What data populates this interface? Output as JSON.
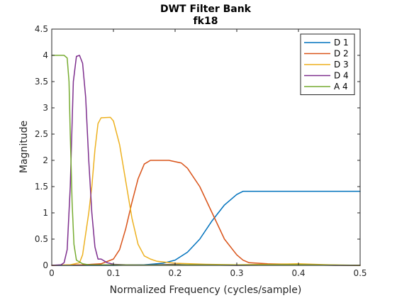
{
  "chart_data": {
    "type": "line",
    "title": "DWT Filter Bank",
    "subtitle": "fk18",
    "xlabel": "Normalized Frequency  (cycles/sample)",
    "ylabel": "Magnitude",
    "xlim": [
      0,
      0.5
    ],
    "ylim": [
      0,
      4.5
    ],
    "x_ticks": [
      0,
      0.1,
      0.2,
      0.3,
      0.4,
      0.5
    ],
    "x_tick_labels": [
      "0",
      "0.1",
      "0.2",
      "0.3",
      "0.4",
      "0.5"
    ],
    "y_ticks": [
      0,
      0.5,
      1,
      1.5,
      2,
      2.5,
      3,
      3.5,
      4,
      4.5
    ],
    "y_tick_labels": [
      "0",
      "0.5",
      "1",
      "1.5",
      "2",
      "2.5",
      "3",
      "3.5",
      "4",
      "4.5"
    ],
    "grid": false,
    "legend_position": "top-right",
    "series": [
      {
        "name": "D 1",
        "color": "#0072BD",
        "points": [
          [
            0,
            0
          ],
          [
            0.1,
            0
          ],
          [
            0.15,
            0.01
          ],
          [
            0.18,
            0.04
          ],
          [
            0.2,
            0.1
          ],
          [
            0.22,
            0.25
          ],
          [
            0.24,
            0.5
          ],
          [
            0.26,
            0.85
          ],
          [
            0.28,
            1.15
          ],
          [
            0.3,
            1.35
          ],
          [
            0.31,
            1.41
          ],
          [
            0.5,
            1.41
          ]
        ]
      },
      {
        "name": "D 2",
        "color": "#D95319",
        "points": [
          [
            0,
            0
          ],
          [
            0.05,
            0.01
          ],
          [
            0.08,
            0.03
          ],
          [
            0.1,
            0.12
          ],
          [
            0.11,
            0.3
          ],
          [
            0.12,
            0.7
          ],
          [
            0.13,
            1.2
          ],
          [
            0.14,
            1.65
          ],
          [
            0.15,
            1.93
          ],
          [
            0.16,
            2.0
          ],
          [
            0.19,
            2.0
          ],
          [
            0.21,
            1.95
          ],
          [
            0.22,
            1.85
          ],
          [
            0.24,
            1.5
          ],
          [
            0.26,
            1.0
          ],
          [
            0.28,
            0.5
          ],
          [
            0.3,
            0.2
          ],
          [
            0.31,
            0.1
          ],
          [
            0.32,
            0.05
          ],
          [
            0.35,
            0.03
          ],
          [
            0.4,
            0.02
          ],
          [
            0.45,
            0.005
          ],
          [
            0.5,
            0
          ]
        ]
      },
      {
        "name": "D 3",
        "color": "#EDB120",
        "points": [
          [
            0,
            0
          ],
          [
            0.03,
            0.01
          ],
          [
            0.045,
            0.05
          ],
          [
            0.05,
            0.2
          ],
          [
            0.06,
            1.0
          ],
          [
            0.065,
            1.5
          ],
          [
            0.07,
            2.2
          ],
          [
            0.075,
            2.7
          ],
          [
            0.08,
            2.81
          ],
          [
            0.095,
            2.82
          ],
          [
            0.1,
            2.75
          ],
          [
            0.11,
            2.3
          ],
          [
            0.12,
            1.6
          ],
          [
            0.13,
            0.9
          ],
          [
            0.14,
            0.4
          ],
          [
            0.15,
            0.18
          ],
          [
            0.16,
            0.12
          ],
          [
            0.17,
            0.08
          ],
          [
            0.2,
            0.04
          ],
          [
            0.25,
            0.02
          ],
          [
            0.3,
            0.01
          ],
          [
            0.4,
            0.03
          ],
          [
            0.45,
            0.01
          ],
          [
            0.5,
            0
          ]
        ]
      },
      {
        "name": "D 4",
        "color": "#7E2F8E",
        "points": [
          [
            0,
            0
          ],
          [
            0.015,
            0.01
          ],
          [
            0.02,
            0.05
          ],
          [
            0.025,
            0.3
          ],
          [
            0.03,
            1.5
          ],
          [
            0.035,
            3.5
          ],
          [
            0.04,
            3.98
          ],
          [
            0.045,
            4.0
          ],
          [
            0.05,
            3.85
          ],
          [
            0.055,
            3.2
          ],
          [
            0.06,
            2.0
          ],
          [
            0.065,
            1.0
          ],
          [
            0.07,
            0.35
          ],
          [
            0.075,
            0.12
          ],
          [
            0.08,
            0.12
          ],
          [
            0.09,
            0.05
          ],
          [
            0.1,
            0.02
          ],
          [
            0.12,
            0.01
          ],
          [
            0.15,
            0.005
          ],
          [
            0.2,
            0.02
          ],
          [
            0.22,
            0.01
          ],
          [
            0.3,
            0
          ],
          [
            0.4,
            0.01
          ],
          [
            0.46,
            0
          ],
          [
            0.5,
            0
          ]
        ]
      },
      {
        "name": "A 4",
        "color": "#77AC30",
        "points": [
          [
            0,
            4.0
          ],
          [
            0.02,
            4.0
          ],
          [
            0.025,
            3.95
          ],
          [
            0.028,
            3.5
          ],
          [
            0.03,
            2.5
          ],
          [
            0.033,
            1.2
          ],
          [
            0.036,
            0.4
          ],
          [
            0.04,
            0.1
          ],
          [
            0.05,
            0.03
          ],
          [
            0.06,
            0.01
          ],
          [
            0.1,
            0.01
          ],
          [
            0.15,
            0.005
          ],
          [
            0.2,
            0.01
          ],
          [
            0.3,
            0.005
          ],
          [
            0.4,
            0.01
          ],
          [
            0.5,
            0
          ]
        ]
      }
    ]
  }
}
